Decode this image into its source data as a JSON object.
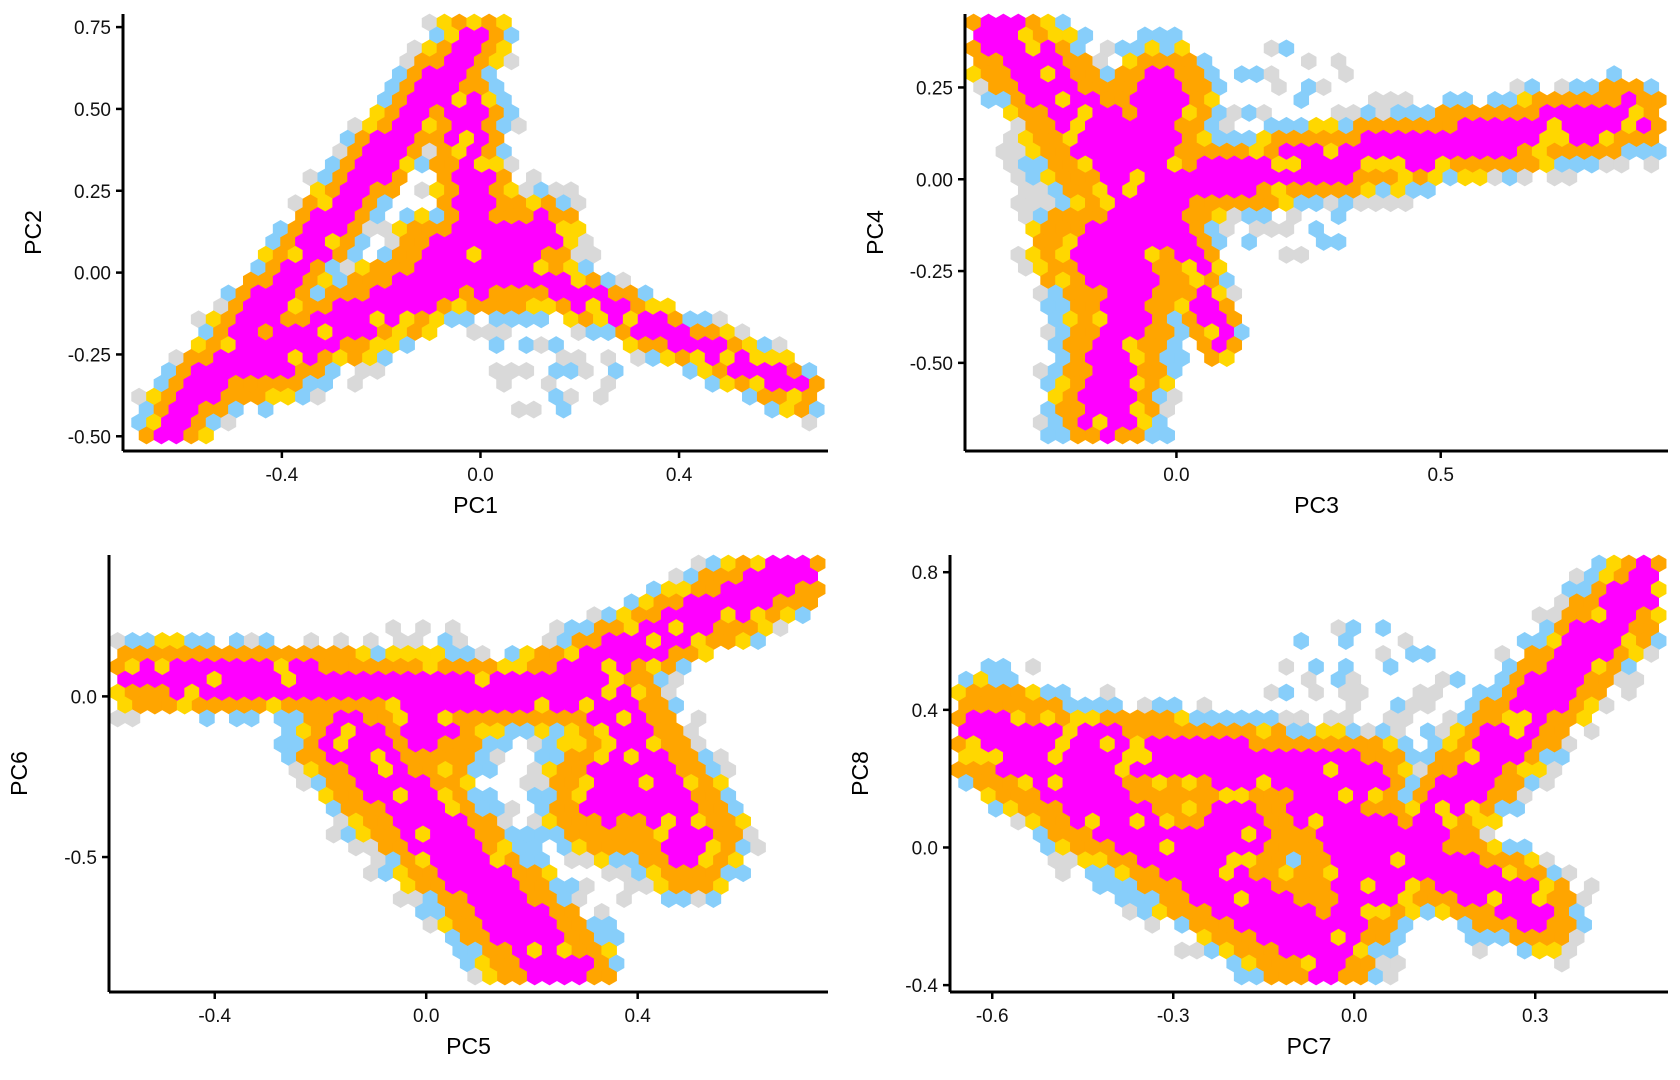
{
  "palette": {
    "sparse": "#d9d9d9",
    "low": "#87cefa",
    "mid": "#ffd700",
    "high": "#ffa500",
    "peak": "#ff00ff"
  },
  "chart_data": [
    {
      "type": "hexbin",
      "xlabel": "PC1",
      "ylabel": "PC2",
      "xlim": [
        -0.72,
        0.7
      ],
      "ylim": [
        -0.545,
        0.79
      ],
      "xticks": [
        -0.4,
        0.0,
        0.4
      ],
      "xtick_labels": [
        "-0.4",
        "0.0",
        "0.4"
      ],
      "yticks": [
        -0.5,
        -0.25,
        0.0,
        0.25,
        0.5,
        0.75
      ],
      "ytick_labels": [
        "-0.50",
        "-0.25",
        "0.00",
        "0.25",
        "0.50",
        "0.75"
      ],
      "arms": [
        {
          "from": [
            -0.63,
            -0.49
          ],
          "to": [
            -0.01,
            0.72
          ],
          "width": 0.085
        },
        {
          "from": [
            -0.01,
            0.07
          ],
          "to": [
            0.64,
            -0.36
          ],
          "width": 0.065
        },
        {
          "from": [
            -0.45,
            -0.28
          ],
          "to": [
            0.12,
            0.12
          ],
          "width": 0.11
        },
        {
          "from": [
            -0.03,
            0.5
          ],
          "to": [
            0.0,
            -0.02
          ],
          "width": 0.1
        }
      ],
      "blobs": [
        {
          "center": [
            0.07,
            0.03
          ],
          "radius": 0.14
        },
        {
          "center": [
            -0.08,
            0.04
          ],
          "radius": 0.13
        }
      ],
      "fringe": {
        "center": [
          0.15,
          -0.24
        ],
        "radius": 0.17
      }
    },
    {
      "type": "hexbin",
      "xlabel": "PC3",
      "ylabel": "PC4",
      "xlim": [
        -0.4,
        0.93
      ],
      "ylim": [
        -0.74,
        0.45
      ],
      "xticks": [
        0.0,
        0.5
      ],
      "xtick_labels": [
        "0.0",
        "0.5"
      ],
      "yticks": [
        -0.5,
        -0.25,
        0.0,
        0.25
      ],
      "ytick_labels": [
        "-0.50",
        "-0.25",
        "0.00",
        "0.25"
      ],
      "arms": [
        {
          "from": [
            -0.33,
            0.41
          ],
          "to": [
            -0.02,
            -0.1
          ],
          "width": 0.12
        },
        {
          "from": [
            -0.02,
            -0.02
          ],
          "to": [
            0.86,
            0.17
          ],
          "width": 0.09
        },
        {
          "from": [
            -0.03,
            0.22
          ],
          "to": [
            -0.13,
            -0.63
          ],
          "width": 0.13
        },
        {
          "from": [
            0.0,
            -0.1
          ],
          "to": [
            0.08,
            -0.43
          ],
          "width": 0.06
        }
      ],
      "blobs": [
        {
          "center": [
            -0.15,
            0.12
          ],
          "radius": 0.17
        },
        {
          "center": [
            -0.15,
            -0.2
          ],
          "radius": 0.16
        }
      ],
      "fringe": {
        "center": [
          0.2,
          0.08
        ],
        "radius": 0.25
      }
    },
    {
      "type": "hexbin",
      "xlabel": "PC5",
      "ylabel": "PC6",
      "xlim": [
        -0.6,
        0.76
      ],
      "ylim": [
        -0.92,
        0.44
      ],
      "xticks": [
        -0.4,
        0.0,
        0.4
      ],
      "xtick_labels": [
        "-0.4",
        "0.0",
        "0.4"
      ],
      "yticks": [
        0.0,
        -0.5
      ],
      "ytick_labels": [
        "0.0",
        "-0.5"
      ],
      "arms": [
        {
          "from": [
            -0.55,
            0.07
          ],
          "to": [
            0.25,
            0.0
          ],
          "width": 0.09
        },
        {
          "from": [
            0.2,
            0.0
          ],
          "to": [
            0.7,
            0.39
          ],
          "width": 0.1
        },
        {
          "from": [
            -0.15,
            -0.12
          ],
          "to": [
            0.26,
            -0.86
          ],
          "width": 0.14
        },
        {
          "from": [
            0.35,
            -0.05
          ],
          "to": [
            0.5,
            -0.45
          ],
          "width": 0.14
        }
      ],
      "blobs": [
        {
          "center": [
            0.0,
            -0.07
          ],
          "radius": 0.18
        },
        {
          "center": [
            0.35,
            -0.3
          ],
          "radius": 0.17
        }
      ],
      "fringe": {
        "center": [
          0.3,
          -0.4
        ],
        "radius": 0.2
      }
    },
    {
      "type": "hexbin",
      "xlabel": "PC7",
      "ylabel": "PC8",
      "xlim": [
        -0.67,
        0.52
      ],
      "ylim": [
        -0.42,
        0.85
      ],
      "xticks": [
        -0.6,
        -0.3,
        0.0,
        0.3
      ],
      "xtick_labels": [
        "-0.6",
        "-0.3",
        "0.0",
        "0.3"
      ],
      "yticks": [
        -0.4,
        0.0,
        0.4,
        0.8
      ],
      "ytick_labels": [
        "-0.4",
        "0.0",
        "0.4",
        "0.8"
      ],
      "arms": [
        {
          "from": [
            -0.6,
            0.33
          ],
          "to": [
            -0.05,
            -0.3
          ],
          "width": 0.13
        },
        {
          "from": [
            -0.05,
            -0.3
          ],
          "to": [
            0.48,
            0.77
          ],
          "width": 0.1
        },
        {
          "from": [
            -0.6,
            0.32
          ],
          "to": [
            0.02,
            0.2
          ],
          "width": 0.1
        },
        {
          "from": [
            -0.08,
            0.12
          ],
          "to": [
            0.3,
            -0.18
          ],
          "width": 0.1
        }
      ],
      "blobs": [
        {
          "center": [
            -0.2,
            0.05
          ],
          "radius": 0.17
        },
        {
          "center": [
            0.0,
            -0.05
          ],
          "radius": 0.15
        }
      ],
      "fringe": {
        "center": [
          0.02,
          0.33
        ],
        "radius": 0.24
      }
    }
  ]
}
